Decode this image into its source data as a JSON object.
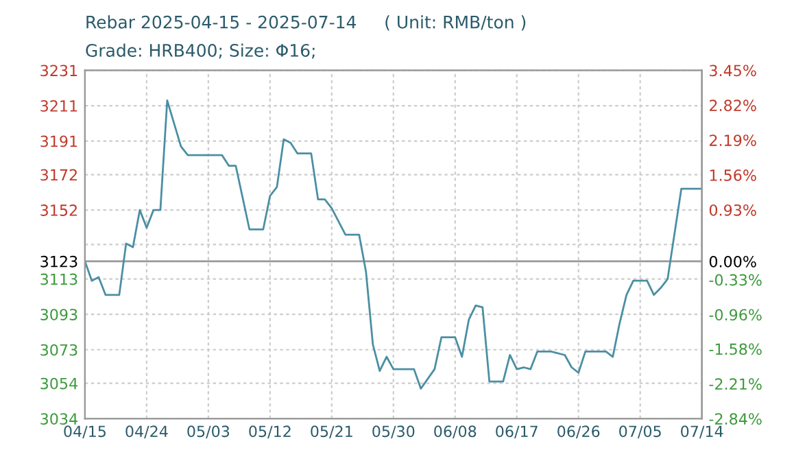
{
  "chart_data": {
    "type": "line",
    "title": "Rebar 2025-04-15 - 2025-07-14     ( Unit: RMB/ton )",
    "subtitle": "Grade: HRB400; Size: Φ16;",
    "x": [
      "2025-04-15",
      "2025-04-16",
      "2025-04-17",
      "2025-04-18",
      "2025-04-20",
      "2025-04-21",
      "2025-04-22",
      "2025-04-23",
      "2025-04-24",
      "2025-04-25",
      "2025-04-26",
      "2025-04-27",
      "2025-04-28",
      "2025-04-29",
      "2025-04-30",
      "2025-05-05",
      "2025-05-06",
      "2025-05-07",
      "2025-05-09",
      "2025-05-11",
      "2025-05-12",
      "2025-05-13",
      "2025-05-14",
      "2025-05-15",
      "2025-05-16",
      "2025-05-18",
      "2025-05-19",
      "2025-05-20",
      "2025-05-21",
      "2025-05-23",
      "2025-05-25",
      "2025-05-26",
      "2025-05-27",
      "2025-05-28",
      "2025-05-29",
      "2025-05-30",
      "2025-06-02",
      "2025-06-03",
      "2025-06-05",
      "2025-06-06",
      "2025-06-08",
      "2025-06-09",
      "2025-06-10",
      "2025-06-11",
      "2025-06-12",
      "2025-06-13",
      "2025-06-15",
      "2025-06-16",
      "2025-06-17",
      "2025-06-18",
      "2025-06-19",
      "2025-06-20",
      "2025-06-22",
      "2025-06-24",
      "2025-06-25",
      "2025-06-26",
      "2025-06-27",
      "2025-06-30",
      "2025-07-01",
      "2025-07-02",
      "2025-07-03",
      "2025-07-04",
      "2025-07-06",
      "2025-07-07",
      "2025-07-08",
      "2025-07-09",
      "2025-07-11",
      "2025-07-14"
    ],
    "series": [
      {
        "color": "#4a8fa3",
        "values": [
          3123,
          3112,
          3114,
          3104,
          3104,
          3133,
          3131,
          3152,
          3142,
          3152,
          3152,
          3214,
          3201,
          3188,
          3183,
          3183,
          3177,
          3177,
          3141,
          3141,
          3160,
          3165,
          3192,
          3190,
          3184,
          3184,
          3158,
          3158,
          3153,
          3138,
          3138,
          3117,
          3076,
          3061,
          3069,
          3062,
          3062,
          3051,
          3062,
          3080,
          3080,
          3069,
          3090,
          3098,
          3097,
          3055,
          3055,
          3070,
          3062,
          3063,
          3062,
          3072,
          3072,
          3070,
          3063,
          3060,
          3072,
          3072,
          3069,
          3088,
          3104,
          3112,
          3112,
          3104,
          3108,
          3113,
          3164,
          3164
        ]
      }
    ],
    "xlim": [
      "2025-04-15",
      "2025-07-14"
    ],
    "xticks": [
      {
        "value": "2025-04-15",
        "label": "04/15"
      },
      {
        "value": "2025-04-24",
        "label": "04/24"
      },
      {
        "value": "2025-05-03",
        "label": "05/03"
      },
      {
        "value": "2025-05-12",
        "label": "05/12"
      },
      {
        "value": "2025-05-21",
        "label": "05/21"
      },
      {
        "value": "2025-05-30",
        "label": "05/30"
      },
      {
        "value": "2025-06-08",
        "label": "06/08"
      },
      {
        "value": "2025-06-17",
        "label": "06/17"
      },
      {
        "value": "2025-06-26",
        "label": "06/26"
      },
      {
        "value": "2025-07-05",
        "label": "07/05"
      },
      {
        "value": "2025-07-14",
        "label": "07/14"
      }
    ],
    "ylim": [
      3034,
      3231
    ],
    "yticks": [
      3034,
      3054,
      3073,
      3093,
      3113,
      3123,
      {
        "value": 3132.5,
        "label": null
      },
      3152,
      3172,
      3191,
      3211,
      3231
    ],
    "y2lim": [
      -2.84,
      3.45
    ],
    "y2ticks": [
      {
        "value": -2.84,
        "label": "-2.84%"
      },
      {
        "value": -2.21,
        "label": "-2.21%"
      },
      {
        "value": -1.58,
        "label": "-1.58%"
      },
      {
        "value": -0.96,
        "label": "-0.96%"
      },
      {
        "value": -0.33,
        "label": "-0.33%"
      },
      {
        "value": 0,
        "label": "0.00%"
      },
      {
        "value": 0.3,
        "label": null
      },
      {
        "value": 0.93,
        "label": "0.93%"
      },
      {
        "value": 1.56,
        "label": "1.56%"
      },
      {
        "value": 2.19,
        "label": "2.19%"
      },
      {
        "value": 2.82,
        "label": "2.82%"
      },
      {
        "value": 3.45,
        "label": "3.45%"
      }
    ],
    "ref_lines": [
      {
        "axis": "y",
        "value": 3123,
        "color": "#999999"
      }
    ],
    "grid": true
  }
}
